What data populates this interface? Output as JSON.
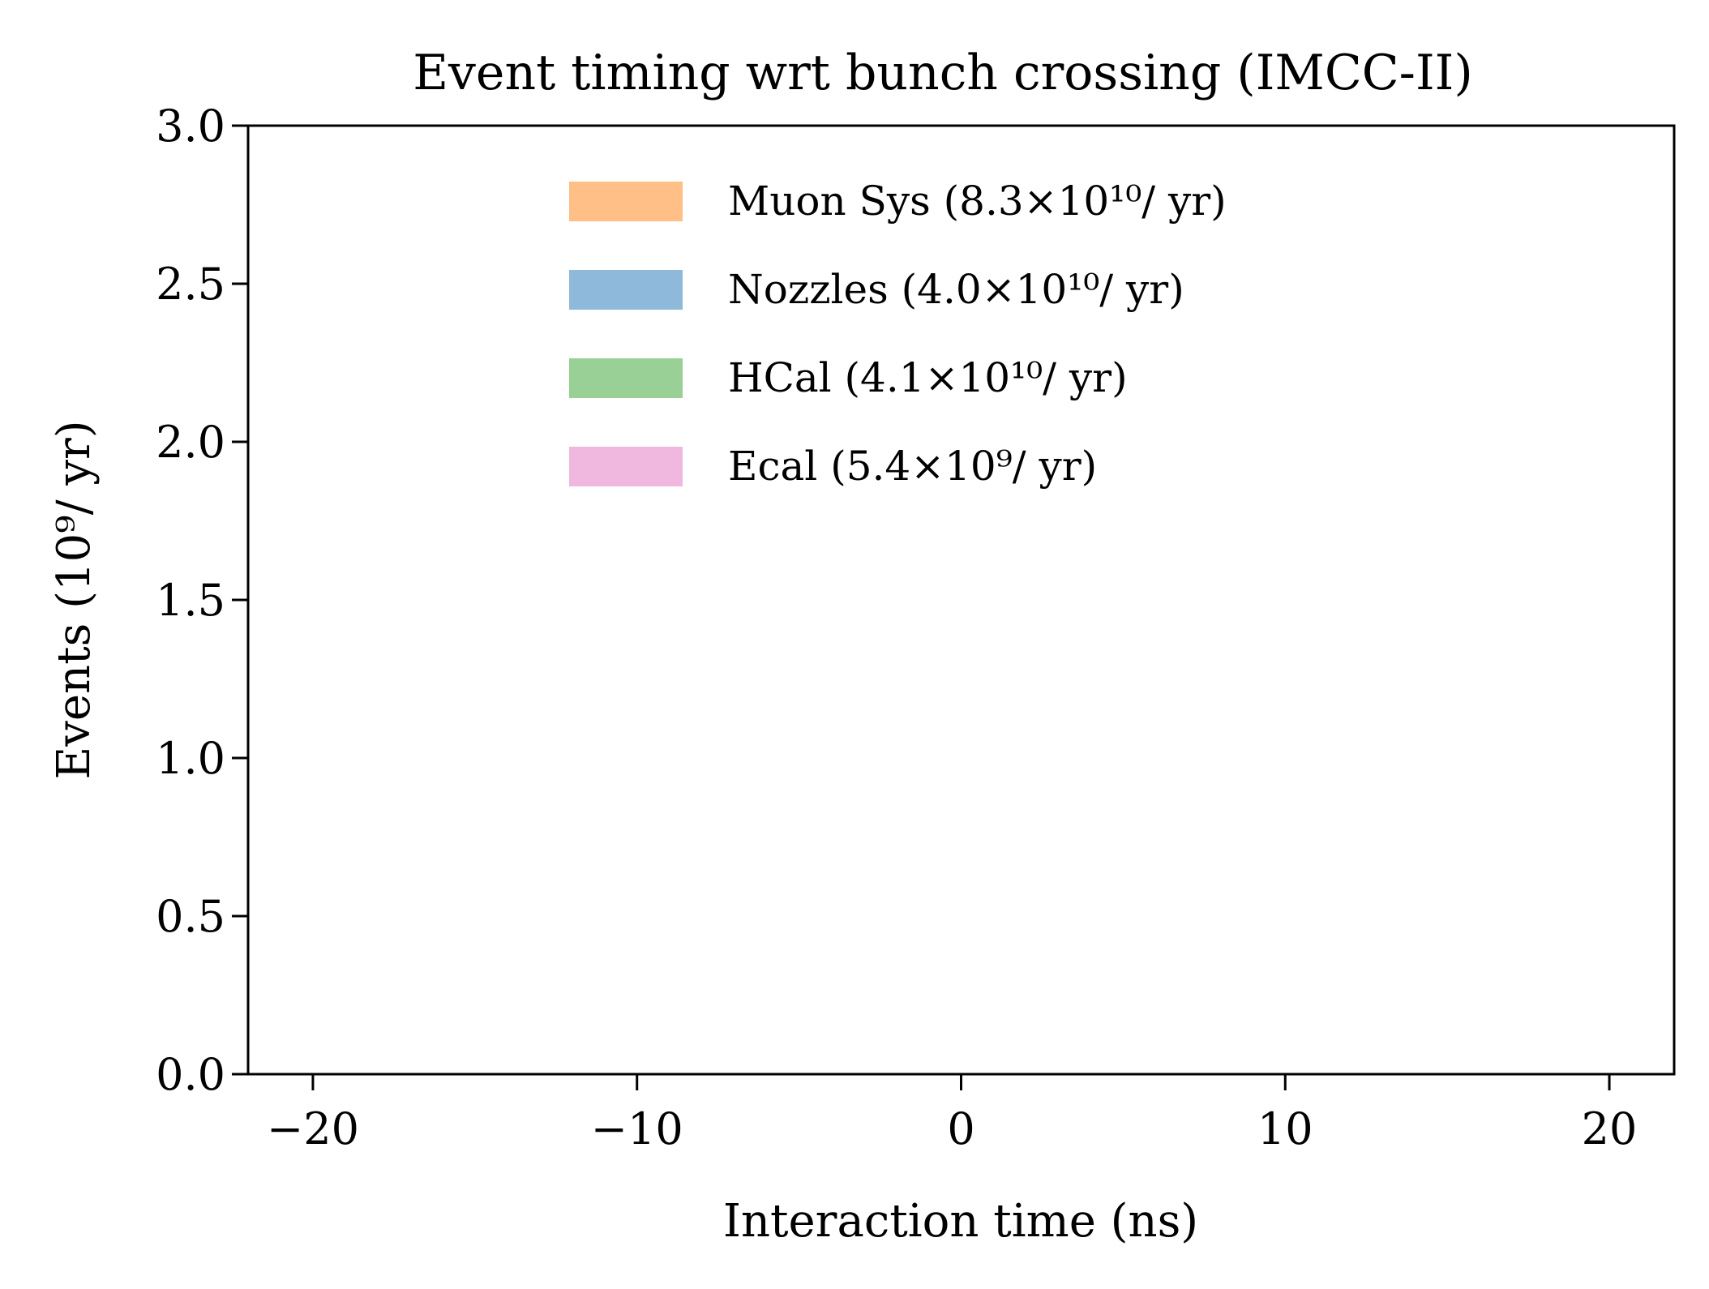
{
  "chart_data": {
    "type": "area",
    "title": "Event timing wrt bunch crossing (IMCC-II)",
    "xlabel": "Interaction time (ns)",
    "ylabel": "Events (10⁹/ yr)",
    "xlim": [
      -22,
      22
    ],
    "ylim": [
      0,
      3.0
    ],
    "xticks": [
      -20,
      -10,
      0,
      10,
      20
    ],
    "xtick_labels": [
      "−20",
      "−10",
      "0",
      "10",
      "20"
    ],
    "yticks": [
      0,
      0.5,
      1.0,
      1.5,
      2.0,
      2.5,
      3.0
    ],
    "ytick_labels": [
      "0.0",
      "0.5",
      "1.0",
      "1.5",
      "2.0",
      "2.5",
      "3.0"
    ],
    "grid": false,
    "legend_position": "upper-center",
    "series": [
      {
        "name": "Muon Sys (8.3×10¹⁰/ yr)",
        "color": "#ffbf87",
        "x": [],
        "y": []
      },
      {
        "name": "Nozzles (4.0×10¹⁰/ yr)",
        "color": "#8fb9da",
        "x": [],
        "y": []
      },
      {
        "name": "HCal (4.1×10¹⁰/ yr)",
        "color": "#98d095",
        "x": [],
        "y": []
      },
      {
        "name": "Ecal (5.4×10⁹/ yr)",
        "color": "#f0b8de",
        "x": [],
        "y": []
      }
    ]
  }
}
